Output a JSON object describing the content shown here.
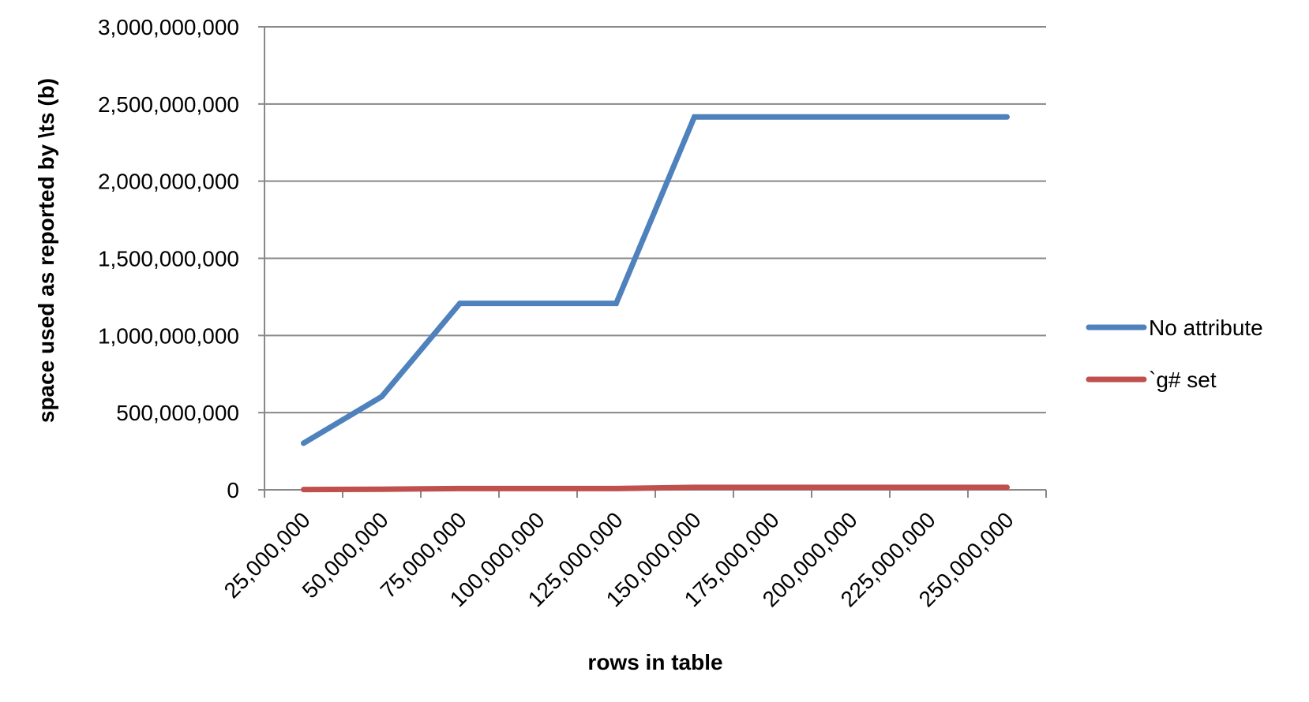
{
  "chart_data": {
    "type": "line",
    "title": "",
    "xlabel": "rows in table",
    "ylabel": "space used as reported by \\ts (b)",
    "categories": [
      "25,000,000",
      "50,000,000",
      "75,000,000",
      "100,000,000",
      "125,000,000",
      "150,000,000",
      "175,000,000",
      "200,000,000",
      "225,000,000",
      "250,000,000"
    ],
    "y_ticks": [
      "0",
      "500,000,000",
      "1,000,000,000",
      "1,500,000,000",
      "2,000,000,000",
      "2,500,000,000",
      "3,000,000,000"
    ],
    "ylim": [
      0,
      3000000000
    ],
    "grid": true,
    "legend_position": "right",
    "series": [
      {
        "name": "No attribute",
        "color": "#4F81BD",
        "values": [
          302000000,
          604000000,
          1208000000,
          1208000000,
          1208000000,
          2416000000,
          2416000000,
          2416000000,
          2416000000,
          2416000000
        ]
      },
      {
        "name": "`g# set",
        "color": "#C0504D",
        "values": [
          2000000,
          4000000,
          8000000,
          8000000,
          8000000,
          16000000,
          16000000,
          16000000,
          16000000,
          16000000
        ]
      }
    ]
  }
}
